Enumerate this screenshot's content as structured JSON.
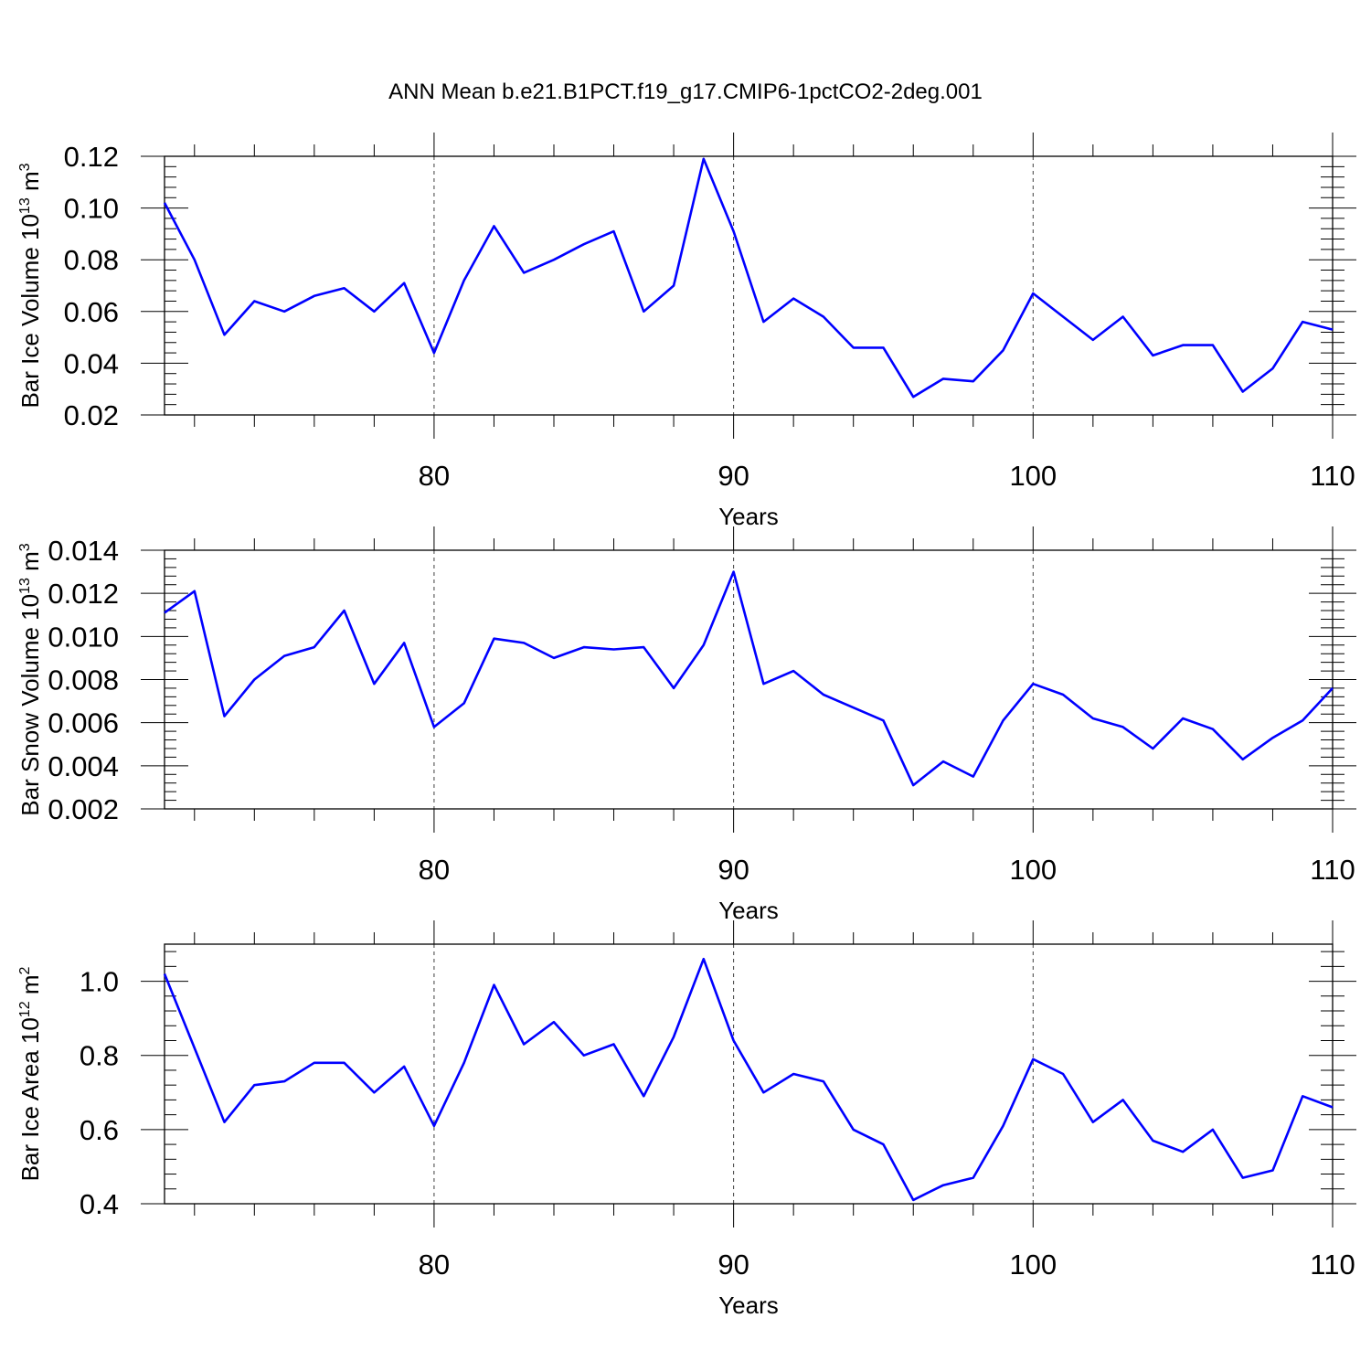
{
  "title": "ANN Mean b.e21.B1PCT.f19_g17.CMIP6-1pctCO2-2deg.001",
  "colors": {
    "series": "#0000ff",
    "axes": "#000000",
    "background": "#ffffff"
  },
  "chart_data": [
    {
      "type": "line",
      "xlabel": "Years",
      "ylabel": "Bar Ice Volume 10",
      "ylabel_exp": "13",
      "ylabel_unit": " m",
      "ylabel_unit_exp": "3",
      "xlim": [
        71,
        110
      ],
      "ylim": [
        0.02,
        0.12
      ],
      "xticks": [
        "80",
        "90",
        "100",
        "110"
      ],
      "yticks": [
        "0.02",
        "0.04",
        "0.06",
        "0.08",
        "0.10",
        "0.12"
      ],
      "grid_x": [
        80,
        90,
        100
      ],
      "x": [
        71,
        72,
        73,
        74,
        75,
        76,
        77,
        78,
        79,
        80,
        81,
        82,
        83,
        84,
        85,
        86,
        87,
        88,
        89,
        90,
        91,
        92,
        93,
        94,
        95,
        96,
        97,
        98,
        99,
        100,
        101,
        102,
        103,
        104,
        105,
        106,
        107,
        108,
        109,
        110
      ],
      "series": [
        {
          "name": "Bar Ice Volume",
          "values": [
            0.102,
            0.08,
            0.051,
            0.064,
            0.06,
            0.066,
            0.069,
            0.06,
            0.071,
            0.044,
            0.072,
            0.093,
            0.075,
            0.08,
            0.086,
            0.091,
            0.06,
            0.07,
            0.119,
            0.091,
            0.056,
            0.065,
            0.058,
            0.046,
            0.046,
            0.027,
            0.034,
            0.033,
            0.045,
            0.067,
            0.058,
            0.049,
            0.058,
            0.043,
            0.047,
            0.047,
            0.029,
            0.038,
            0.056,
            0.053
          ]
        }
      ]
    },
    {
      "type": "line",
      "xlabel": "Years",
      "ylabel": "Bar Snow Volume 10",
      "ylabel_exp": "13",
      "ylabel_unit": " m",
      "ylabel_unit_exp": "3",
      "xlim": [
        71,
        110
      ],
      "ylim": [
        0.002,
        0.014
      ],
      "xticks": [
        "80",
        "90",
        "100",
        "110"
      ],
      "yticks": [
        "0.002",
        "0.004",
        "0.006",
        "0.008",
        "0.010",
        "0.012",
        "0.014"
      ],
      "grid_x": [
        80,
        90,
        100
      ],
      "x": [
        71,
        72,
        73,
        74,
        75,
        76,
        77,
        78,
        79,
        80,
        81,
        82,
        83,
        84,
        85,
        86,
        87,
        88,
        89,
        90,
        91,
        92,
        93,
        94,
        95,
        96,
        97,
        98,
        99,
        100,
        101,
        102,
        103,
        104,
        105,
        106,
        107,
        108,
        109,
        110
      ],
      "series": [
        {
          "name": "Bar Snow Volume",
          "values": [
            0.0111,
            0.0121,
            0.0063,
            0.008,
            0.0091,
            0.0095,
            0.0112,
            0.0078,
            0.0097,
            0.0058,
            0.0069,
            0.0099,
            0.0097,
            0.009,
            0.0095,
            0.0094,
            0.0095,
            0.0076,
            0.0096,
            0.013,
            0.0078,
            0.0084,
            0.0073,
            0.0067,
            0.0061,
            0.0031,
            0.0042,
            0.0035,
            0.0061,
            0.0078,
            0.0073,
            0.0062,
            0.0058,
            0.0048,
            0.0062,
            0.0057,
            0.0043,
            0.0053,
            0.0061,
            0.0076
          ]
        }
      ]
    },
    {
      "type": "line",
      "xlabel": "Years",
      "ylabel": "Bar Ice Area 10",
      "ylabel_exp": "12",
      "ylabel_unit": " m",
      "ylabel_unit_exp": "2",
      "xlim": [
        71,
        110
      ],
      "ylim": [
        0.4,
        1.1
      ],
      "xticks": [
        "80",
        "90",
        "100",
        "110"
      ],
      "yticks": [
        "0.4",
        "0.6",
        "0.8",
        "1.0"
      ],
      "grid_x": [
        80,
        90,
        100
      ],
      "x": [
        71,
        72,
        73,
        74,
        75,
        76,
        77,
        78,
        79,
        80,
        81,
        82,
        83,
        84,
        85,
        86,
        87,
        88,
        89,
        90,
        91,
        92,
        93,
        94,
        95,
        96,
        97,
        98,
        99,
        100,
        101,
        102,
        103,
        104,
        105,
        106,
        107,
        108,
        109,
        110
      ],
      "series": [
        {
          "name": "Bar Ice Area",
          "values": [
            1.02,
            0.82,
            0.62,
            0.72,
            0.73,
            0.78,
            0.78,
            0.7,
            0.77,
            0.61,
            0.78,
            0.99,
            0.83,
            0.89,
            0.8,
            0.83,
            0.69,
            0.85,
            1.06,
            0.84,
            0.7,
            0.75,
            0.73,
            0.6,
            0.56,
            0.41,
            0.45,
            0.47,
            0.61,
            0.79,
            0.75,
            0.62,
            0.68,
            0.57,
            0.54,
            0.6,
            0.47,
            0.49,
            0.69,
            0.66
          ]
        }
      ]
    }
  ]
}
